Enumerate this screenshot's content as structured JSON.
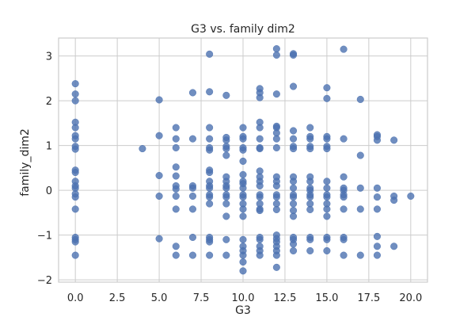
{
  "chart_data": {
    "type": "scatter",
    "title": "G3 vs. family dim2",
    "xlabel": "G3",
    "ylabel": "family_dim2",
    "xlim": [
      -1,
      21
    ],
    "ylim": [
      -2.05,
      3.4
    ],
    "xticks": [
      0.0,
      2.5,
      5.0,
      7.5,
      10.0,
      12.5,
      15.0,
      17.5,
      20.0
    ],
    "xtick_labels": [
      "0.0",
      "2.5",
      "5.0",
      "7.5",
      "10.0",
      "12.5",
      "15.0",
      "17.5",
      "20.0"
    ],
    "yticks": [
      -2,
      -1,
      0,
      1,
      2,
      3
    ],
    "ytick_labels": [
      "−2",
      "−1",
      "0",
      "1",
      "2",
      "3"
    ],
    "grid": true,
    "color": "#4c72b0",
    "points": [
      [
        0,
        2.38
      ],
      [
        0,
        2.15
      ],
      [
        0,
        2.0
      ],
      [
        0,
        1.52
      ],
      [
        0,
        1.4
      ],
      [
        0,
        1.22
      ],
      [
        0,
        1.15
      ],
      [
        0,
        0.98
      ],
      [
        0,
        0.92
      ],
      [
        0,
        0.45
      ],
      [
        0,
        0.4
      ],
      [
        0,
        0.2
      ],
      [
        0,
        0.1
      ],
      [
        0,
        0.05
      ],
      [
        0,
        -0.08
      ],
      [
        0,
        -0.15
      ],
      [
        0,
        -0.42
      ],
      [
        0,
        -1.05
      ],
      [
        0,
        -1.1
      ],
      [
        0,
        -1.15
      ],
      [
        0,
        -1.45
      ],
      [
        4,
        0.93
      ],
      [
        5,
        2.02
      ],
      [
        5,
        1.22
      ],
      [
        5,
        0.33
      ],
      [
        5,
        -0.13
      ],
      [
        5,
        -1.08
      ],
      [
        6,
        1.4
      ],
      [
        6,
        1.15
      ],
      [
        6,
        0.95
      ],
      [
        6,
        0.52
      ],
      [
        6,
        0.32
      ],
      [
        6,
        0.1
      ],
      [
        6,
        0.03
      ],
      [
        6,
        -0.13
      ],
      [
        6,
        -0.42
      ],
      [
        6,
        -1.25
      ],
      [
        6,
        -1.45
      ],
      [
        7,
        2.18
      ],
      [
        7,
        1.15
      ],
      [
        7,
        0.1
      ],
      [
        7,
        0.05
      ],
      [
        7,
        -0.13
      ],
      [
        7,
        -0.42
      ],
      [
        7,
        -1.05
      ],
      [
        7,
        -1.45
      ],
      [
        8,
        3.04
      ],
      [
        8,
        2.2
      ],
      [
        8,
        1.4
      ],
      [
        8,
        1.15
      ],
      [
        8,
        0.95
      ],
      [
        8,
        0.9
      ],
      [
        8,
        0.45
      ],
      [
        8,
        0.4
      ],
      [
        8,
        0.2
      ],
      [
        8,
        0.1
      ],
      [
        8,
        0.05
      ],
      [
        8,
        -0.1
      ],
      [
        8,
        -0.15
      ],
      [
        8,
        -0.3
      ],
      [
        8,
        -1.05
      ],
      [
        8,
        -1.1
      ],
      [
        8,
        -1.15
      ],
      [
        8,
        -1.45
      ],
      [
        9,
        2.12
      ],
      [
        9,
        1.18
      ],
      [
        9,
        1.12
      ],
      [
        9,
        0.98
      ],
      [
        9,
        0.93
      ],
      [
        9,
        0.78
      ],
      [
        9,
        0.3
      ],
      [
        9,
        0.2
      ],
      [
        9,
        0.1
      ],
      [
        9,
        0.05
      ],
      [
        9,
        -0.1
      ],
      [
        9,
        -0.15
      ],
      [
        9,
        -0.3
      ],
      [
        9,
        -0.58
      ],
      [
        9,
        -1.1
      ],
      [
        9,
        -1.45
      ],
      [
        10,
        1.4
      ],
      [
        10,
        1.2
      ],
      [
        10,
        1.15
      ],
      [
        10,
        0.95
      ],
      [
        10,
        0.9
      ],
      [
        10,
        0.65
      ],
      [
        10,
        0.35
      ],
      [
        10,
        0.2
      ],
      [
        10,
        0.15
      ],
      [
        10,
        0.05
      ],
      [
        10,
        -0.1
      ],
      [
        10,
        -0.15
      ],
      [
        10,
        -0.3
      ],
      [
        10,
        -0.42
      ],
      [
        10,
        -0.58
      ],
      [
        10,
        -1.1
      ],
      [
        10,
        -1.25
      ],
      [
        10,
        -1.35
      ],
      [
        10,
        -1.45
      ],
      [
        10,
        -1.6
      ],
      [
        10,
        -1.8
      ],
      [
        11,
        2.27
      ],
      [
        11,
        2.18
      ],
      [
        11,
        2.07
      ],
      [
        11,
        1.52
      ],
      [
        11,
        1.4
      ],
      [
        11,
        1.15
      ],
      [
        11,
        0.95
      ],
      [
        11,
        0.93
      ],
      [
        11,
        0.43
      ],
      [
        11,
        0.3
      ],
      [
        11,
        0.2
      ],
      [
        11,
        0.1
      ],
      [
        11,
        -0.1
      ],
      [
        11,
        -0.15
      ],
      [
        11,
        -0.3
      ],
      [
        11,
        -0.42
      ],
      [
        11,
        -0.45
      ],
      [
        11,
        -1.05
      ],
      [
        11,
        -1.1
      ],
      [
        11,
        -1.25
      ],
      [
        11,
        -1.35
      ],
      [
        11,
        -1.45
      ],
      [
        12,
        3.16
      ],
      [
        12,
        3.02
      ],
      [
        12,
        2.15
      ],
      [
        12,
        1.43
      ],
      [
        12,
        1.4
      ],
      [
        12,
        1.28
      ],
      [
        12,
        1.15
      ],
      [
        12,
        0.95
      ],
      [
        12,
        0.3
      ],
      [
        12,
        0.2
      ],
      [
        12,
        0.1
      ],
      [
        12,
        -0.1
      ],
      [
        12,
        -0.15
      ],
      [
        12,
        -0.3
      ],
      [
        12,
        -0.43
      ],
      [
        12,
        -1.0
      ],
      [
        12,
        -1.08
      ],
      [
        12,
        -1.15
      ],
      [
        12,
        -1.25
      ],
      [
        12,
        -1.35
      ],
      [
        12,
        -1.45
      ],
      [
        12,
        -1.72
      ],
      [
        13,
        3.05
      ],
      [
        13,
        3.02
      ],
      [
        13,
        2.32
      ],
      [
        13,
        1.33
      ],
      [
        13,
        1.15
      ],
      [
        13,
        0.98
      ],
      [
        13,
        0.93
      ],
      [
        13,
        0.3
      ],
      [
        13,
        0.2
      ],
      [
        13,
        0.05
      ],
      [
        13,
        -0.1
      ],
      [
        13,
        -0.15
      ],
      [
        13,
        -0.3
      ],
      [
        13,
        -0.45
      ],
      [
        13,
        -0.58
      ],
      [
        13,
        -1.05
      ],
      [
        13,
        -1.1
      ],
      [
        13,
        -1.2
      ],
      [
        13,
        -1.35
      ],
      [
        14,
        1.4
      ],
      [
        14,
        1.2
      ],
      [
        14,
        1.15
      ],
      [
        14,
        0.98
      ],
      [
        14,
        0.93
      ],
      [
        14,
        0.3
      ],
      [
        14,
        0.2
      ],
      [
        14,
        0.05
      ],
      [
        14,
        0.0
      ],
      [
        14,
        -0.1
      ],
      [
        14,
        -0.15
      ],
      [
        14,
        -0.3
      ],
      [
        14,
        -0.43
      ],
      [
        14,
        -1.05
      ],
      [
        14,
        -1.1
      ],
      [
        14,
        -1.35
      ],
      [
        15,
        2.29
      ],
      [
        15,
        2.05
      ],
      [
        15,
        1.2
      ],
      [
        15,
        1.15
      ],
      [
        15,
        0.98
      ],
      [
        15,
        0.93
      ],
      [
        15,
        0.2
      ],
      [
        15,
        0.05
      ],
      [
        15,
        -0.1
      ],
      [
        15,
        -0.15
      ],
      [
        15,
        -0.3
      ],
      [
        15,
        -0.42
      ],
      [
        15,
        -0.58
      ],
      [
        15,
        -1.05
      ],
      [
        15,
        -1.1
      ],
      [
        15,
        -1.35
      ],
      [
        16,
        3.15
      ],
      [
        16,
        1.15
      ],
      [
        16,
        0.3
      ],
      [
        16,
        0.05
      ],
      [
        16,
        0.0
      ],
      [
        16,
        -0.1
      ],
      [
        16,
        -0.15
      ],
      [
        16,
        -0.42
      ],
      [
        16,
        -1.05
      ],
      [
        16,
        -1.1
      ],
      [
        16,
        -1.45
      ],
      [
        17,
        2.03
      ],
      [
        17,
        0.78
      ],
      [
        17,
        0.05
      ],
      [
        17,
        -0.42
      ],
      [
        17,
        -1.45
      ],
      [
        18,
        1.24
      ],
      [
        18,
        1.2
      ],
      [
        18,
        1.12
      ],
      [
        18,
        0.05
      ],
      [
        18,
        -0.15
      ],
      [
        18,
        -0.42
      ],
      [
        18,
        -1.03
      ],
      [
        18,
        -1.25
      ],
      [
        18,
        -1.45
      ],
      [
        19,
        1.12
      ],
      [
        19,
        -0.13
      ],
      [
        19,
        -0.22
      ],
      [
        19,
        -1.25
      ],
      [
        20,
        -0.13
      ]
    ]
  }
}
